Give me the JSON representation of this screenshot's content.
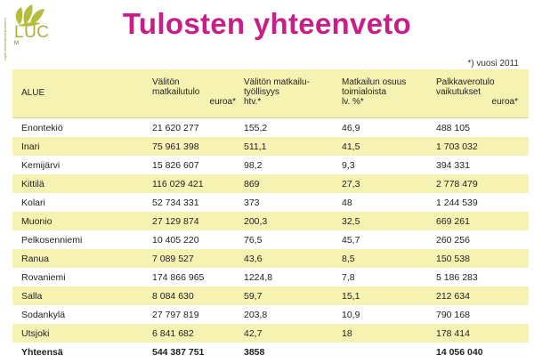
{
  "logo": {
    "name": "LUC",
    "side_text": "Lapin korkeakoulukonserni",
    "sub_text": "M"
  },
  "title": "Tulosten yhteenveto",
  "note": "*) vuosi 2011",
  "table": {
    "headers": [
      {
        "line1": "ALUE",
        "line2": "",
        "unit": ""
      },
      {
        "line1": "Välitön",
        "line2": "matkailutulo",
        "unit": "euroa*"
      },
      {
        "line1": "Välitön matkailu-",
        "line2": "työllisyys",
        "unit": "htv.*"
      },
      {
        "line1": "Matkailun osuus",
        "line2": "toimialoista",
        "unit": "lv. %*"
      },
      {
        "line1": "Palkkaverotulo",
        "line2": "vaikutukset",
        "unit": "euroa*"
      }
    ],
    "rows": [
      [
        "Enontekiö",
        "21 620 277",
        "155,2",
        "46,9",
        "488 105"
      ],
      [
        "Inari",
        "75 961 398",
        "511,1",
        "41,5",
        "1 703 032"
      ],
      [
        "Kemijärvi",
        "15 826 607",
        "98,2",
        "9,3",
        "394 331"
      ],
      [
        "Kittilä",
        "116 029 421",
        "869",
        "27,3",
        "2 778 479"
      ],
      [
        "Kolari",
        "52 734 331",
        "373",
        "48",
        "1 244 539"
      ],
      [
        "Muonio",
        "27 129 874",
        "200,3",
        "32,5",
        "669 261"
      ],
      [
        "Pelkosenniemi",
        "10 405 220",
        "76,5",
        "45,7",
        "260 256"
      ],
      [
        "Ranua",
        "7 089 527",
        "43,6",
        "8,5",
        "150 538"
      ],
      [
        "Rovaniemi",
        "174 866 965",
        "1224,8",
        "7,8",
        "5 186 283"
      ],
      [
        "Salla",
        "8 084 630",
        "59,7",
        "15,1",
        "212 634"
      ],
      [
        "Sodankylä",
        "27 797 819",
        "203,8",
        "10,9",
        "790 168"
      ],
      [
        "Utsjoki",
        "6 841 682",
        "42,7",
        "18",
        "178 414"
      ]
    ],
    "total": [
      "Yhteensä",
      "544 387 751",
      "3858",
      "",
      "14 056 040"
    ]
  }
}
